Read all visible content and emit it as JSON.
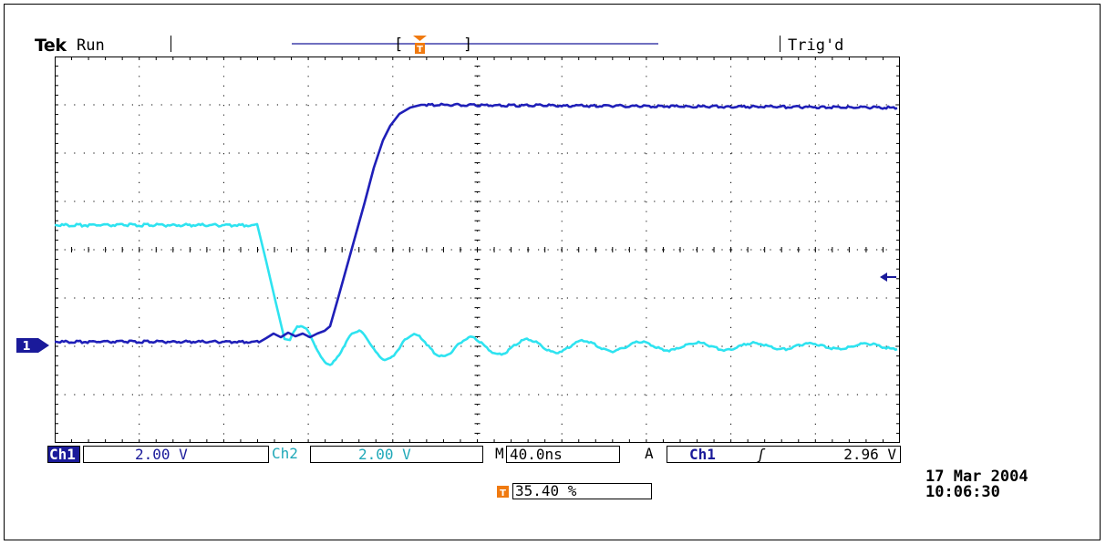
{
  "header": {
    "brand": "Tek",
    "status": "Run",
    "trigger_status": "Trig'd"
  },
  "channels": {
    "ch1": {
      "label": "Ch1",
      "scale": "2.00 V",
      "color": "#1f1fb8",
      "marker": "1"
    },
    "ch2": {
      "label": "Ch2",
      "scale": "2.00 V",
      "color": "#2ee3f0"
    }
  },
  "timebase": {
    "label": "M",
    "value": "40.0ns"
  },
  "trigger": {
    "label": "A",
    "source": "Ch1",
    "slope": "ʃ",
    "level": "2.96 V",
    "position": "35.40 %",
    "marker_color": "#f07a10"
  },
  "timestamp": {
    "date": "17 Mar 2004",
    "time": "10:06:30"
  },
  "colors": {
    "grid": "#000000",
    "screen_bg": "#ffffff",
    "bar_fill": "#1a1a9a"
  }
}
